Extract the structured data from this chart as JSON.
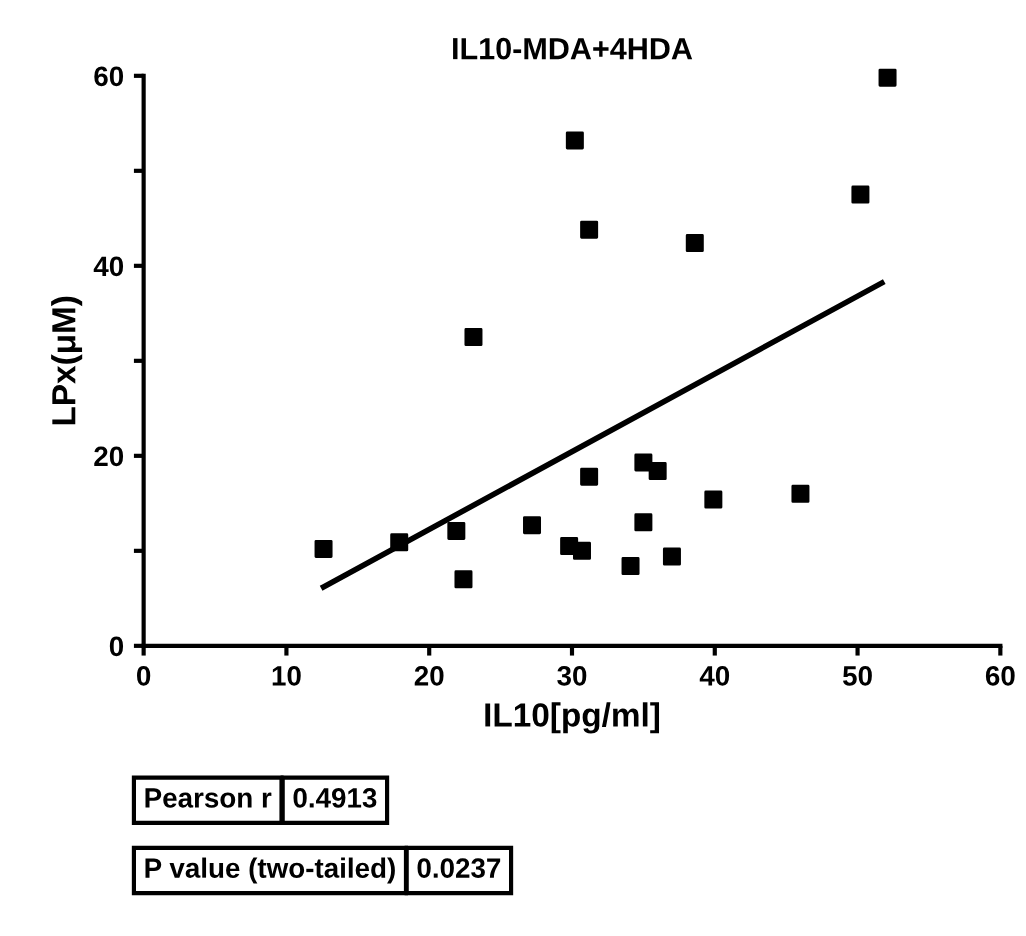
{
  "chart_data": {
    "type": "scatter",
    "title": "IL10-MDA+4HDA",
    "xlabel": "IL10[pg/ml]",
    "ylabel": "LPx(μM)",
    "xlim": [
      0,
      60
    ],
    "xticks": [
      0,
      10,
      20,
      30,
      40,
      50,
      60
    ],
    "ylim": [
      0,
      60
    ],
    "yticks": [
      0,
      {
        "value": 10,
        "label": null
      },
      20,
      {
        "value": 30,
        "label": null
      },
      40,
      {
        "value": 50,
        "label": null
      },
      60
    ],
    "grid": false,
    "marker": "square",
    "series": [
      {
        "color": "#000000",
        "x": [
          12.6,
          17.9,
          21.9,
          22.4,
          23.1,
          27.2,
          29.8,
          30.7,
          30.2,
          31.2,
          31.2,
          34.1,
          35.0,
          35.0,
          36.0,
          37.0,
          38.6,
          39.9,
          46.0,
          50.2,
          52.1
        ],
        "values": [
          10.2,
          10.9,
          12.1,
          7.0,
          32.5,
          12.7,
          10.5,
          10.0,
          53.2,
          43.8,
          17.8,
          8.4,
          19.3,
          13.0,
          18.4,
          9.4,
          42.4,
          15.4,
          16.0,
          47.5,
          59.8
        ]
      },
      {
        "type": "line",
        "color": "#000000",
        "marker": "none",
        "line_style": "solid",
        "x": [
          12.6,
          51.7
        ],
        "values": [
          6.2,
          38.2
        ]
      }
    ],
    "annotations": [
      "Pearson r",
      "0.4913",
      "P value (two-tailed)",
      "0.0237"
    ]
  }
}
